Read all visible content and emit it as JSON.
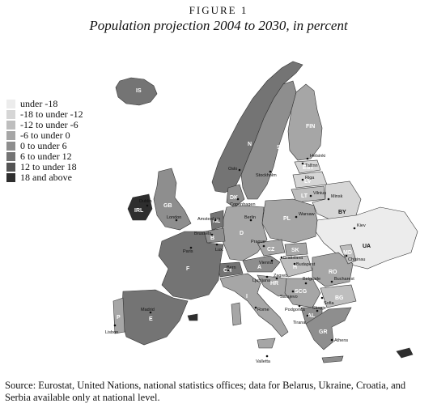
{
  "figure_label": "FIGURE 1",
  "title": "Population projection 2004 to 2030, in percent",
  "legend": [
    {
      "label": "under -18",
      "color": "#ececec"
    },
    {
      "label": "-18 to under -12",
      "color": "#d6d6d6"
    },
    {
      "label": "-12 to under -6",
      "color": "#bebebe"
    },
    {
      "label": "-6 to under 0",
      "color": "#a6a6a6"
    },
    {
      "label": "0 to under 6",
      "color": "#8e8e8e"
    },
    {
      "label": "6 to under 12",
      "color": "#747474"
    },
    {
      "label": "12 to under 18",
      "color": "#545454"
    },
    {
      "label": "18 and above",
      "color": "#2e2e2e"
    }
  ],
  "source": "Source: Eurostat, United Nations, national statistics offices; data for Belarus, Ukraine, Croatia, and Serbia available only at national level.",
  "country_codes": {
    "fin": "FIN",
    "s": "S",
    "est": "EST",
    "lv": "LV",
    "lt": "LT",
    "by": "BY",
    "ua": "UA",
    "md": "MD",
    "ro": "RO",
    "bg": "BG",
    "gr": "GR",
    "pl": "PL",
    "cz": "CZ",
    "sk": "SK",
    "h": "H",
    "a": "A",
    "slo": "SLO",
    "hr": "HR",
    "bih": "BIH",
    "scg": "SCG",
    "mk": "MK",
    "al": "AL",
    "i": "I",
    "ch": "CH",
    "d": "D",
    "dk": "DK",
    "nl": "NL",
    "b": "B",
    "l": "L",
    "f": "F",
    "e": "E",
    "p": "P",
    "gb": "GB",
    "irl": "IRL",
    "is": "IS",
    "n": "N"
  },
  "cities": {
    "helsinki": "Helsinki",
    "tallinn": "Tallinn",
    "riga": "Riga",
    "vilnius": "Vilnius",
    "minsk": "Minsk",
    "kiev": "Kiev",
    "chisinau": "Chisinau",
    "bucharest": "Bucharest",
    "sofia": "Sofia",
    "athens": "Athens",
    "tirana": "Tirana",
    "podgorica": "Podgorica",
    "sarajevo": "Sarajevo",
    "zagreb": "Zagreb",
    "ljubljana": "Ljubljana",
    "bratislava": "Bratislava",
    "budapest": "Budapest",
    "warsaw": "Warsaw",
    "prague": "Prague",
    "vienna": "Vienna",
    "berlin": "Berlin",
    "bern": "Bern",
    "rome": "Rome",
    "oslo": "Oslo",
    "stockholm": "Stockholm",
    "copenhagen": "Copenhagen",
    "amsterdam": "Amsterdam",
    "brussels": "Brussels",
    "paris": "Paris",
    "london": "London",
    "dublin": "Dublin",
    "madrid": "Madrid",
    "lisbon": "Lisbon",
    "valletta": "Valletta",
    "belgrade": "Belgrade",
    "skopje": "Skopje",
    "luxembourg": "Lux."
  }
}
